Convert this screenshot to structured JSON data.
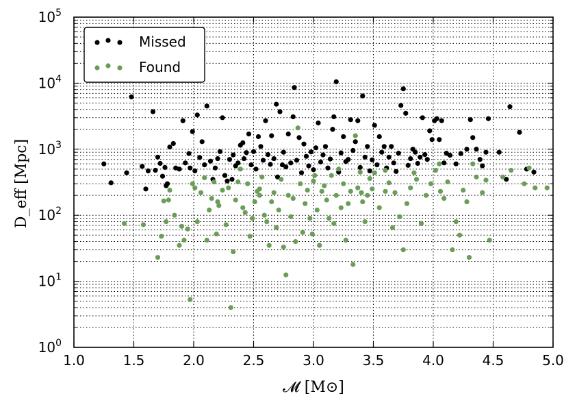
{
  "chart_data": {
    "type": "scatter",
    "xlabel": "𝓜 [M⊙]",
    "ylabel": "D_eff [Mpc]",
    "xlim": [
      1.0,
      5.0
    ],
    "ylim": [
      1,
      100000
    ],
    "yscale": "log",
    "grid": true,
    "legend_position": "top-left",
    "x_ticks": [
      "1.0",
      "1.5",
      "2.0",
      "2.5",
      "3.0",
      "3.5",
      "4.0",
      "4.5",
      "5.0"
    ],
    "y_ticks": [
      {
        "base": "10",
        "exp": "0"
      },
      {
        "base": "10",
        "exp": "1"
      },
      {
        "base": "10",
        "exp": "2"
      },
      {
        "base": "10",
        "exp": "3"
      },
      {
        "base": "10",
        "exp": "4"
      },
      {
        "base": "10",
        "exp": "5"
      }
    ],
    "series": [
      {
        "name": "Missed",
        "color": "#000000",
        "points": [
          [
            1.25,
            600
          ],
          [
            1.31,
            310
          ],
          [
            1.44,
            440
          ],
          [
            1.48,
            6200
          ],
          [
            1.57,
            550
          ],
          [
            1.6,
            250
          ],
          [
            1.62,
            470
          ],
          [
            1.66,
            3700
          ],
          [
            1.68,
            480
          ],
          [
            1.7,
            760
          ],
          [
            1.72,
            610
          ],
          [
            1.74,
            390
          ],
          [
            1.76,
            530
          ],
          [
            1.77,
            280
          ],
          [
            1.78,
            300
          ],
          [
            1.8,
            1080
          ],
          [
            1.83,
            1220
          ],
          [
            1.85,
            520
          ],
          [
            1.88,
            500
          ],
          [
            1.91,
            2700
          ],
          [
            1.93,
            620
          ],
          [
            1.96,
            860
          ],
          [
            1.97,
            520
          ],
          [
            1.99,
            1850
          ],
          [
            2.01,
            470
          ],
          [
            2.03,
            3300
          ],
          [
            2.05,
            750
          ],
          [
            2.07,
            1300
          ],
          [
            2.09,
            580
          ],
          [
            2.11,
            4500
          ],
          [
            2.14,
            660
          ],
          [
            2.16,
            350
          ],
          [
            2.18,
            520
          ],
          [
            2.2,
            720
          ],
          [
            2.22,
            920
          ],
          [
            2.24,
            3000
          ],
          [
            2.26,
            400
          ],
          [
            2.28,
            330
          ],
          [
            2.3,
            700
          ],
          [
            2.32,
            350
          ],
          [
            2.33,
            820
          ],
          [
            2.35,
            560
          ],
          [
            2.37,
            620
          ],
          [
            2.39,
            1150
          ],
          [
            2.41,
            1250
          ],
          [
            2.42,
            720
          ],
          [
            2.44,
            890
          ],
          [
            2.46,
            1700
          ],
          [
            2.48,
            580
          ],
          [
            2.5,
            920
          ],
          [
            2.52,
            500
          ],
          [
            2.54,
            1550
          ],
          [
            2.56,
            1100
          ],
          [
            2.58,
            680
          ],
          [
            2.6,
            2700
          ],
          [
            2.62,
            830
          ],
          [
            2.64,
            590
          ],
          [
            2.65,
            1600
          ],
          [
            2.67,
            720
          ],
          [
            2.69,
            4800
          ],
          [
            2.7,
            380
          ],
          [
            2.72,
            3700
          ],
          [
            2.74,
            580
          ],
          [
            2.75,
            900
          ],
          [
            2.77,
            540
          ],
          [
            2.79,
            1700
          ],
          [
            2.81,
            620
          ],
          [
            2.83,
            3100
          ],
          [
            2.84,
            8600
          ],
          [
            2.86,
            680
          ],
          [
            2.88,
            1500
          ],
          [
            2.9,
            440
          ],
          [
            2.92,
            1200
          ],
          [
            2.94,
            780
          ],
          [
            2.96,
            560
          ],
          [
            2.98,
            910
          ],
          [
            3.0,
            490
          ],
          [
            3.02,
            1050
          ],
          [
            3.04,
            2500
          ],
          [
            3.06,
            640
          ],
          [
            3.08,
            820
          ],
          [
            3.1,
            1100
          ],
          [
            3.12,
            520
          ],
          [
            3.14,
            710
          ],
          [
            3.16,
            2000
          ],
          [
            3.17,
            3100
          ],
          [
            3.19,
            10500
          ],
          [
            3.21,
            450
          ],
          [
            3.23,
            880
          ],
          [
            3.25,
            1550
          ],
          [
            3.27,
            650
          ],
          [
            3.29,
            700
          ],
          [
            3.31,
            2800
          ],
          [
            3.33,
            960
          ],
          [
            3.35,
            1300
          ],
          [
            3.37,
            2700
          ],
          [
            3.39,
            530
          ],
          [
            3.41,
            6400
          ],
          [
            3.43,
            760
          ],
          [
            3.45,
            1100
          ],
          [
            3.47,
            470
          ],
          [
            3.49,
            690
          ],
          [
            3.51,
            2300
          ],
          [
            3.53,
            580
          ],
          [
            3.55,
            1550
          ],
          [
            3.57,
            900
          ],
          [
            3.59,
            1100
          ],
          [
            3.61,
            520
          ],
          [
            3.63,
            760
          ],
          [
            3.65,
            1100
          ],
          [
            3.67,
            620
          ],
          [
            3.69,
            460
          ],
          [
            3.71,
            870
          ],
          [
            3.73,
            4600
          ],
          [
            3.75,
            8200
          ],
          [
            3.77,
            3500
          ],
          [
            3.79,
            570
          ],
          [
            3.81,
            720
          ],
          [
            3.83,
            1000
          ],
          [
            3.85,
            900
          ],
          [
            3.87,
            610
          ],
          [
            3.89,
            760
          ],
          [
            3.91,
            3000
          ],
          [
            3.93,
            830
          ],
          [
            3.95,
            700
          ],
          [
            3.97,
            1900
          ],
          [
            3.99,
            1400
          ],
          [
            4.01,
            2700
          ],
          [
            4.03,
            2900
          ],
          [
            4.05,
            1400
          ],
          [
            4.07,
            2700
          ],
          [
            4.09,
            620
          ],
          [
            4.11,
            870
          ],
          [
            4.14,
            810
          ],
          [
            4.19,
            600
          ],
          [
            4.23,
            860
          ],
          [
            4.28,
            1000
          ],
          [
            4.31,
            2800
          ],
          [
            4.33,
            1500
          ],
          [
            4.36,
            1000
          ],
          [
            4.39,
            700
          ],
          [
            4.41,
            560
          ],
          [
            4.44,
            900
          ],
          [
            4.46,
            2900
          ],
          [
            4.55,
            900
          ],
          [
            4.61,
            350
          ],
          [
            4.64,
            4400
          ],
          [
            4.72,
            1800
          ],
          [
            4.78,
            500
          ],
          [
            4.84,
            450
          ]
        ]
      },
      {
        "name": "Found",
        "color": "#6a9e58",
        "points": [
          [
            1.42,
            75
          ],
          [
            1.58,
            72
          ],
          [
            1.7,
            23
          ],
          [
            1.73,
            48
          ],
          [
            1.75,
            165
          ],
          [
            1.77,
            80
          ],
          [
            1.79,
            170
          ],
          [
            1.8,
            240
          ],
          [
            1.84,
            100
          ],
          [
            1.88,
            35
          ],
          [
            1.9,
            68
          ],
          [
            1.92,
            42
          ],
          [
            1.95,
            62
          ],
          [
            1.97,
            5.3
          ],
          [
            1.99,
            300
          ],
          [
            2.01,
            260
          ],
          [
            2.03,
            80
          ],
          [
            2.06,
            220
          ],
          [
            2.09,
            370
          ],
          [
            2.11,
            42
          ],
          [
            2.13,
            120
          ],
          [
            2.15,
            180
          ],
          [
            2.17,
            320
          ],
          [
            2.19,
            52
          ],
          [
            2.21,
            140
          ],
          [
            2.24,
            240
          ],
          [
            2.27,
            72
          ],
          [
            2.29,
            260
          ],
          [
            2.31,
            4
          ],
          [
            2.33,
            28
          ],
          [
            2.35,
            170
          ],
          [
            2.37,
            320
          ],
          [
            2.39,
            500
          ],
          [
            2.41,
            130
          ],
          [
            2.43,
            110
          ],
          [
            2.45,
            300
          ],
          [
            2.47,
            48
          ],
          [
            2.49,
            90
          ],
          [
            2.51,
            160
          ],
          [
            2.53,
            230
          ],
          [
            2.55,
            200
          ],
          [
            2.57,
            380
          ],
          [
            2.59,
            100
          ],
          [
            2.61,
            80
          ],
          [
            2.63,
            35
          ],
          [
            2.65,
            160
          ],
          [
            2.67,
            220
          ],
          [
            2.69,
            65
          ],
          [
            2.71,
            120
          ],
          [
            2.73,
            350
          ],
          [
            2.75,
            33
          ],
          [
            2.77,
            12.5
          ],
          [
            2.79,
            200
          ],
          [
            2.81,
            95
          ],
          [
            2.83,
            180
          ],
          [
            2.85,
            40
          ],
          [
            2.87,
            2100
          ],
          [
            2.89,
            300
          ],
          [
            2.91,
            55
          ],
          [
            2.93,
            150
          ],
          [
            2.95,
            240
          ],
          [
            2.97,
            90
          ],
          [
            2.99,
            52
          ],
          [
            3.01,
            400
          ],
          [
            3.03,
            120
          ],
          [
            3.05,
            35
          ],
          [
            3.07,
            230
          ],
          [
            3.09,
            280
          ],
          [
            3.11,
            170
          ],
          [
            3.13,
            90
          ],
          [
            3.15,
            400
          ],
          [
            3.17,
            75
          ],
          [
            3.19,
            200
          ],
          [
            3.21,
            500
          ],
          [
            3.23,
            130
          ],
          [
            3.25,
            300
          ],
          [
            3.27,
            42
          ],
          [
            3.29,
            150
          ],
          [
            3.31,
            230
          ],
          [
            3.33,
            18
          ],
          [
            3.35,
            1600
          ],
          [
            3.37,
            260
          ],
          [
            3.39,
            450
          ],
          [
            3.41,
            160
          ],
          [
            3.43,
            80
          ],
          [
            3.45,
            200
          ],
          [
            3.47,
            360
          ],
          [
            3.49,
            250
          ],
          [
            3.51,
            440
          ],
          [
            3.55,
            130
          ],
          [
            3.6,
            480
          ],
          [
            3.63,
            310
          ],
          [
            3.66,
            65
          ],
          [
            3.68,
            220
          ],
          [
            3.72,
            95
          ],
          [
            3.75,
            30
          ],
          [
            3.78,
            150
          ],
          [
            3.81,
            260
          ],
          [
            3.84,
            440
          ],
          [
            3.86,
            350
          ],
          [
            3.9,
            75
          ],
          [
            3.94,
            200
          ],
          [
            3.98,
            300
          ],
          [
            4.02,
            480
          ],
          [
            4.06,
            230
          ],
          [
            4.09,
            180
          ],
          [
            4.12,
            320
          ],
          [
            4.16,
            30
          ],
          [
            4.19,
            80
          ],
          [
            4.22,
            50
          ],
          [
            4.25,
            240
          ],
          [
            4.28,
            160
          ],
          [
            4.3,
            23
          ],
          [
            4.33,
            600
          ],
          [
            4.36,
            380
          ],
          [
            4.41,
            220
          ],
          [
            4.44,
            340
          ],
          [
            4.47,
            42
          ],
          [
            4.58,
            380
          ],
          [
            4.65,
            480
          ],
          [
            4.76,
            300
          ],
          [
            4.8,
            520
          ],
          [
            4.85,
            260
          ],
          [
            4.95,
            260
          ],
          [
            3.0,
            330
          ],
          [
            2.55,
            250
          ],
          [
            3.6,
            230
          ],
          [
            4.05,
            600
          ],
          [
            2.2,
            160
          ],
          [
            3.4,
            220
          ]
        ]
      }
    ]
  }
}
